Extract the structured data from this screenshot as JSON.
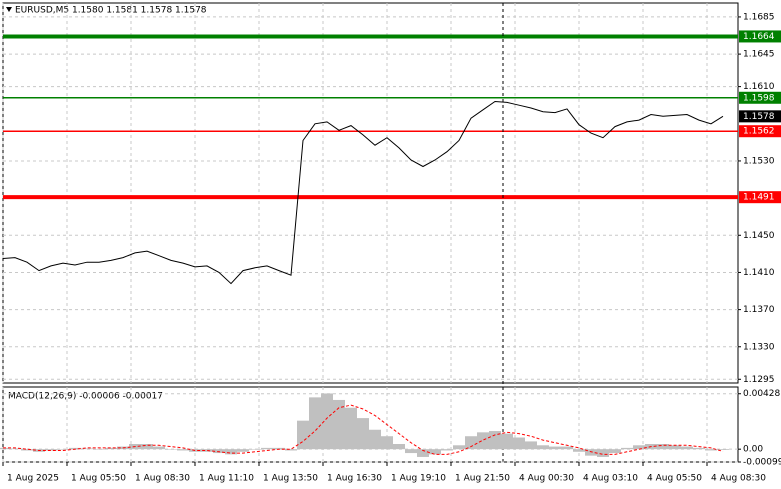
{
  "chart_data": [
    {
      "type": "line",
      "title": "EURUSD,M5  1.1580 1.1581 1.1578 1.1578",
      "x": [
        0,
        6,
        12,
        18,
        24,
        30,
        36,
        42,
        48,
        54,
        60,
        66,
        72,
        78,
        84,
        90,
        96,
        102,
        108,
        114,
        120,
        126,
        132,
        138,
        144,
        150,
        156,
        162,
        168,
        174,
        180,
        186,
        192,
        198,
        204,
        210,
        216,
        222,
        228,
        234,
        240,
        246,
        252,
        258,
        264,
        270,
        276,
        282,
        288,
        294,
        300,
        306,
        312,
        318,
        324,
        330,
        336,
        342,
        348,
        354,
        360
      ],
      "values": [
        1.1425,
        1.1426,
        1.1421,
        1.1412,
        1.1417,
        1.142,
        1.1418,
        1.1421,
        1.1421,
        1.1423,
        1.1426,
        1.1431,
        1.1433,
        1.1428,
        1.1423,
        1.142,
        1.1416,
        1.1417,
        1.141,
        1.1398,
        1.1412,
        1.1415,
        1.1417,
        1.1412,
        1.1407,
        1.1552,
        1.157,
        1.1572,
        1.1563,
        1.1568,
        1.1558,
        1.1547,
        1.1555,
        1.1544,
        1.1531,
        1.1524,
        1.1531,
        1.154,
        1.1552,
        1.1576,
        1.1585,
        1.1594,
        1.1593,
        1.159,
        1.1587,
        1.1583,
        1.1582,
        1.1586,
        1.1569,
        1.156,
        1.1555,
        1.1567,
        1.1572,
        1.1574,
        1.158,
        1.1578,
        1.1579,
        1.158,
        1.1574,
        1.157,
        1.1578
      ],
      "color": "#000000",
      "xlim": [
        0,
        367.5
      ],
      "ylim": [
        1.1291,
        1.17
      ],
      "yticks": [
        1.1685,
        1.1645,
        {
          "value": 1.161,
          "label": "1.1610"
        },
        {
          "value": 1.153,
          "label": "1.1530"
        },
        {
          "value": 1.145,
          "label": "1.1450"
        },
        {
          "value": 1.141,
          "label": "1.1410"
        },
        {
          "value": 1.137,
          "label": "1.1370"
        },
        {
          "value": 1.133,
          "label": "1.1330"
        },
        1.1295
      ],
      "grid": true,
      "levels": [
        {
          "value": 1.1664,
          "color": "#008000",
          "line_width": 4
        },
        {
          "value": 1.1598,
          "color": "#008000",
          "line_width": 1.5
        },
        {
          "value": 1.1562,
          "color": "#ff0000",
          "line_width": 1.5
        },
        {
          "value": 1.1491,
          "color": "#ff0000",
          "line_width": 4
        }
      ],
      "last_price": 1.1578,
      "crosshair_x": 250
    },
    {
      "type": "macd",
      "title": "MACD(12,26,9) -0.00006 -0.00017",
      "x": [
        0,
        6,
        12,
        18,
        24,
        30,
        36,
        42,
        48,
        54,
        60,
        66,
        72,
        78,
        84,
        90,
        96,
        102,
        108,
        114,
        120,
        126,
        132,
        138,
        144,
        150,
        156,
        162,
        168,
        174,
        180,
        186,
        192,
        198,
        204,
        210,
        216,
        222,
        228,
        234,
        240,
        246,
        252,
        258,
        264,
        270,
        276,
        282,
        288,
        294,
        300,
        306,
        312,
        318,
        324,
        330,
        336,
        342,
        348,
        354,
        360
      ],
      "series": [
        {
          "kind": "bar",
          "color": "#c0c0c0",
          "values": [
            0.0001,
            5e-05,
            -0.0001,
            -0.0002,
            -0.0001,
            0,
            0.0001,
            5e-05,
            0,
            0.0001,
            0.0002,
            0.0004,
            0.0004,
            0.0002,
            0,
            -0.0001,
            -0.0002,
            -0.0002,
            -0.0003,
            -0.0004,
            -0.0002,
            0,
            0.0001,
            0.0001,
            -0.0001,
            0.0022,
            0.004,
            0.0043,
            0.0038,
            0.0032,
            0.0024,
            0.0015,
            0.001,
            0.0004,
            -0.0003,
            -0.0006,
            -0.0004,
            -0.0001,
            0.0003,
            0.001,
            0.0013,
            0.0014,
            0.0012,
            0.0009,
            0.0006,
            0.0003,
            0.0002,
            0.0002,
            -0.0002,
            -0.0005,
            -0.0006,
            -0.0003,
            0.0001,
            0.0003,
            0.0004,
            0.0004,
            0.0003,
            0.0002,
            0.0001,
            -0.0001,
            -6e-05
          ]
        },
        {
          "kind": "line",
          "color": "#ff0000",
          "values": [
            0.0001,
            0.0001,
            0,
            -0.0001,
            -0.0001,
            -0.0001,
            0,
            0.0001,
            0.0001,
            0.0001,
            0.0001,
            0.0002,
            0.0003,
            0.0003,
            0.0002,
            0.0001,
            -0.0001,
            -0.0001,
            -0.0002,
            -0.0003,
            -0.0003,
            -0.0002,
            -0.0001,
            0,
            0,
            0.0006,
            0.0014,
            0.0024,
            0.0032,
            0.0034,
            0.0031,
            0.0026,
            0.0019,
            0.0012,
            0.0005,
            -0.0001,
            -0.0004,
            -0.0004,
            -0.0002,
            0.0002,
            0.0007,
            0.0011,
            0.0013,
            0.0012,
            0.001,
            0.0007,
            0.0005,
            0.0003,
            0.0001,
            -0.0002,
            -0.0004,
            -0.0004,
            -0.0002,
            0,
            0.0002,
            0.0003,
            0.0003,
            0.0003,
            0.0002,
            0.0001,
            -0.00017
          ]
        }
      ],
      "xlim": [
        0,
        367.5
      ],
      "ylim": [
        -0.00099,
        0.0048
      ],
      "yticks": [
        0.00428,
        {
          "value": 0,
          "label": "0.00"
        },
        -0.00099
      ],
      "xticks": [
        {
          "value": 0,
          "label": "1 Aug 2025"
        },
        {
          "value": 32,
          "label": "1 Aug 05:50"
        },
        {
          "value": 64,
          "label": "1 Aug 08:30"
        },
        {
          "value": 96,
          "label": "1 Aug 11:10"
        },
        {
          "value": 128,
          "label": "1 Aug 13:50"
        },
        {
          "value": 160,
          "label": "1 Aug 16:30"
        },
        {
          "value": 192,
          "label": "1 Aug 19:10"
        },
        {
          "value": 224,
          "label": "1 Aug 21:50"
        },
        {
          "value": 256,
          "label": "4 Aug 00:30"
        },
        {
          "value": 288,
          "label": "4 Aug 03:10"
        },
        {
          "value": 320,
          "label": "4 Aug 05:50"
        },
        {
          "value": 352,
          "label": "4 Aug 08:30"
        }
      ],
      "grid": true
    }
  ]
}
